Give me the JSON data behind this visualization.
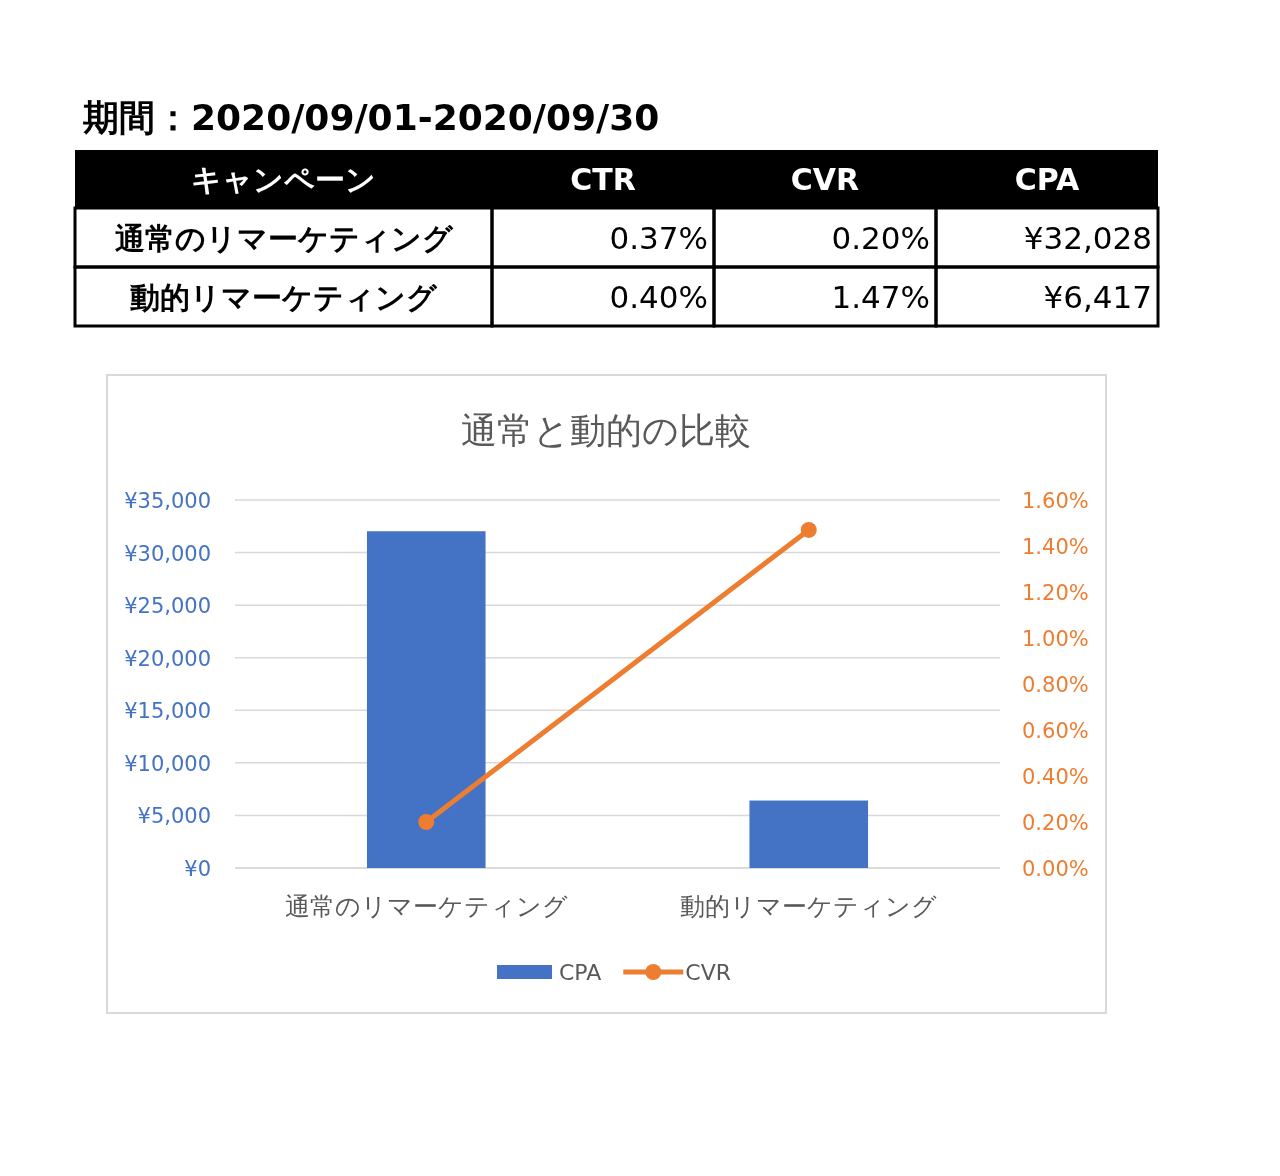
{
  "chart_data": [
    {
      "type": "other",
      "title": "期間：2020/09/01-2020/09/30",
      "annotations": [
        "キャンペーン",
        "CTR",
        "CVR",
        "CPA",
        "通常のリマーケティング",
        "0.37%",
        "0.20%",
        "¥32,028",
        "動的リマーケティング",
        "0.40%",
        "1.47%",
        "¥6,417"
      ]
    },
    {
      "type": "bar",
      "title": "通常と動的の比較",
      "categories": [
        "通常のリマーケティング",
        "動的リマーケティング"
      ],
      "series": [
        {
          "name": "CPA",
          "type": "bar",
          "color": "#4472c4",
          "values": [
            32028,
            6417
          ]
        },
        {
          "name": "CVR",
          "type": "line",
          "axis": "y2",
          "color": "#ed7d31",
          "marker": "circle",
          "values": [
            0.2,
            1.47
          ]
        }
      ],
      "ylim": [
        0,
        35000
      ],
      "yticks": [
        {
          "value": 0,
          "label": "¥0"
        },
        {
          "value": 5000,
          "label": "¥5,000"
        },
        {
          "value": 10000,
          "label": "¥10,000"
        },
        {
          "value": 15000,
          "label": "¥15,000"
        },
        {
          "value": 20000,
          "label": "¥20,000"
        },
        {
          "value": 25000,
          "label": "¥25,000"
        },
        {
          "value": 30000,
          "label": "¥30,000"
        },
        {
          "value": 35000,
          "label": "¥35,000"
        }
      ],
      "y2lim": [
        0,
        1.6
      ],
      "y2ticks": [
        {
          "value": 0,
          "label": "0.00%"
        },
        {
          "value": 0.2,
          "label": "0.20%"
        },
        {
          "value": 0.4,
          "label": "0.40%"
        },
        {
          "value": 0.6,
          "label": "0.60%"
        },
        {
          "value": 0.8,
          "label": "0.80%"
        },
        {
          "value": 1.0,
          "label": "1.00%"
        },
        {
          "value": 1.2,
          "label": "1.20%"
        },
        {
          "value": 1.4,
          "label": "1.40%"
        },
        {
          "value": 1.6,
          "label": "1.60%"
        }
      ],
      "grid": "y",
      "legend": "bottom"
    }
  ]
}
